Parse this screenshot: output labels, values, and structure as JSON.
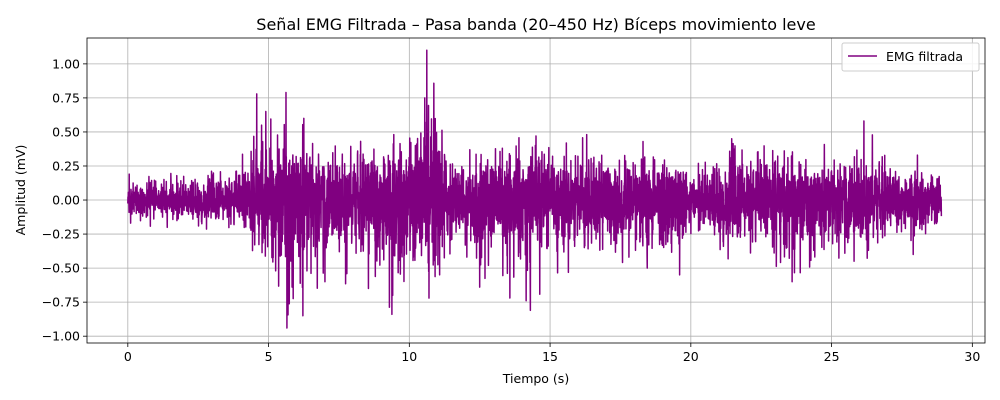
{
  "chart_data": {
    "type": "line",
    "title": "Señal EMG Filtrada – Pasa banda (20–450 Hz) Bíceps movimiento leve",
    "xlabel": "Tiempo (s)",
    "ylabel": "Amplitud (mV)",
    "xlim": [
      -1.45,
      30.45
    ],
    "ylim": [
      -1.05,
      1.19
    ],
    "x_ticks": [
      0,
      5,
      10,
      15,
      20,
      25,
      30
    ],
    "x_tick_labels": [
      "0",
      "5",
      "10",
      "15",
      "20",
      "25",
      "30"
    ],
    "y_ticks": [
      -1.0,
      -0.75,
      -0.5,
      -0.25,
      0.0,
      0.25,
      0.5,
      0.75,
      1.0
    ],
    "y_tick_labels": [
      "−1.00",
      "−0.75",
      "−0.50",
      "−0.25",
      "0.00",
      "0.25",
      "0.50",
      "0.75",
      "1.00"
    ],
    "grid": true,
    "legend_position": "top-right",
    "series": [
      {
        "name": "EMG filtrada",
        "color": "#800080",
        "x_start": 0,
        "x_end": 28.9,
        "envelope": [
          {
            "t": 0,
            "low": -0.17,
            "high": 0.19
          },
          {
            "t": 1,
            "low": -0.2,
            "high": 0.2
          },
          {
            "t": 2,
            "low": -0.22,
            "high": 0.2
          },
          {
            "t": 3,
            "low": -0.24,
            "high": 0.23
          },
          {
            "t": 4,
            "low": -0.3,
            "high": 0.3
          },
          {
            "t": 4.6,
            "low": -0.4,
            "high": 0.78
          },
          {
            "t": 5.2,
            "low": -0.52,
            "high": 0.65
          },
          {
            "t": 5.6,
            "low": -0.94,
            "high": 0.79
          },
          {
            "t": 6.2,
            "low": -0.85,
            "high": 0.6
          },
          {
            "t": 7,
            "low": -0.6,
            "high": 0.48
          },
          {
            "t": 8,
            "low": -0.65,
            "high": 0.43
          },
          {
            "t": 9.4,
            "low": -0.84,
            "high": 0.48
          },
          {
            "t": 10.6,
            "low": -0.72,
            "high": 1.1
          },
          {
            "t": 11.5,
            "low": -0.55,
            "high": 0.35
          },
          {
            "t": 12.5,
            "low": -0.64,
            "high": 0.4
          },
          {
            "t": 14.2,
            "low": -0.81,
            "high": 0.47
          },
          {
            "t": 15,
            "low": -0.6,
            "high": 0.38
          },
          {
            "t": 16.5,
            "low": -0.5,
            "high": 0.48
          },
          {
            "t": 18,
            "low": -0.5,
            "high": 0.43
          },
          {
            "t": 19.5,
            "low": -0.55,
            "high": 0.4
          },
          {
            "t": 20,
            "low": -0.3,
            "high": 0.25
          },
          {
            "t": 21.5,
            "low": -0.5,
            "high": 0.45
          },
          {
            "t": 23.7,
            "low": -0.6,
            "high": 0.4
          },
          {
            "t": 25,
            "low": -0.45,
            "high": 0.45
          },
          {
            "t": 26.2,
            "low": -0.45,
            "high": 0.58
          },
          {
            "t": 27.5,
            "low": -0.3,
            "high": 0.3
          },
          {
            "t": 28.9,
            "low": -0.35,
            "high": 0.3
          }
        ],
        "spikes": [
          {
            "t": 0.05,
            "v": 0.19
          },
          {
            "t": 0.1,
            "v": -0.17
          },
          {
            "t": 4.58,
            "v": 0.78
          },
          {
            "t": 4.75,
            "v": 0.55
          },
          {
            "t": 4.9,
            "v": 0.65
          },
          {
            "t": 5.25,
            "v": -0.52
          },
          {
            "t": 5.62,
            "v": 0.79
          },
          {
            "t": 5.65,
            "v": -0.94
          },
          {
            "t": 6.22,
            "v": -0.85
          },
          {
            "t": 6.25,
            "v": 0.6
          },
          {
            "t": 7.0,
            "v": -0.6
          },
          {
            "t": 8.55,
            "v": -0.65
          },
          {
            "t": 9.38,
            "v": -0.84
          },
          {
            "t": 9.45,
            "v": 0.48
          },
          {
            "t": 10.55,
            "v": 0.75
          },
          {
            "t": 10.62,
            "v": 1.1
          },
          {
            "t": 10.7,
            "v": -0.72
          },
          {
            "t": 11.0,
            "v": 0.35
          },
          {
            "t": 12.5,
            "v": -0.64
          },
          {
            "t": 14.15,
            "v": -0.74
          },
          {
            "t": 14.3,
            "v": -0.81
          },
          {
            "t": 14.5,
            "v": 0.47
          },
          {
            "t": 16.3,
            "v": 0.48
          },
          {
            "t": 18.3,
            "v": 0.43
          },
          {
            "t": 18.45,
            "v": -0.5
          },
          {
            "t": 19.6,
            "v": -0.55
          },
          {
            "t": 21.45,
            "v": 0.45
          },
          {
            "t": 23.6,
            "v": -0.6
          },
          {
            "t": 26.15,
            "v": 0.58
          },
          {
            "t": 25.8,
            "v": -0.45
          },
          {
            "t": 27.9,
            "v": -0.4
          },
          {
            "t": 28.05,
            "v": 0.33
          }
        ]
      }
    ]
  }
}
